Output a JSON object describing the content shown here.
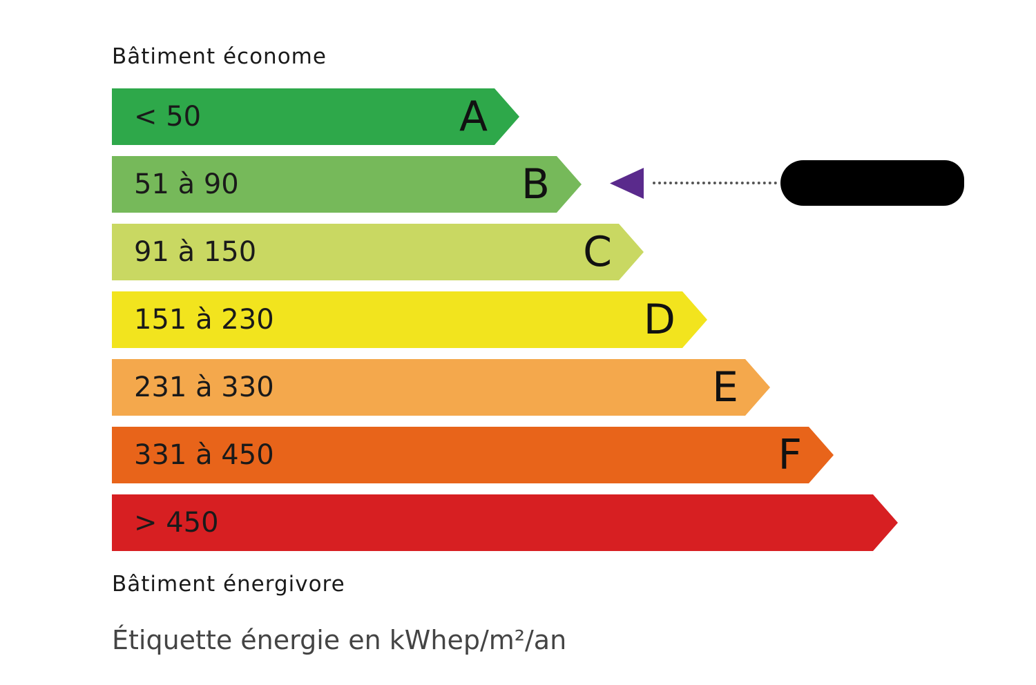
{
  "header_top": "Bâtiment économe",
  "header_bottom": "Bâtiment énergivore",
  "footer": "Étiquette énergie en kWhep/m²/an",
  "classes": [
    {
      "range": "< 50",
      "letter": "A",
      "color": "#2ea84a"
    },
    {
      "range": "51 à 90",
      "letter": "B",
      "color": "#76b95a"
    },
    {
      "range": "91 à 150",
      "letter": "C",
      "color": "#c9d862"
    },
    {
      "range": "151 à 230",
      "letter": "D",
      "color": "#f2e41e"
    },
    {
      "range": "231 à 330",
      "letter": "E",
      "color": "#f4a84c"
    },
    {
      "range": "331 à 450",
      "letter": "F",
      "color": "#e8641a"
    },
    {
      "range": "> 450",
      "letter": "",
      "color": "#d71f22"
    }
  ],
  "indicator": {
    "class": "B",
    "color": "#5a2a8c",
    "value_redacted": true
  }
}
